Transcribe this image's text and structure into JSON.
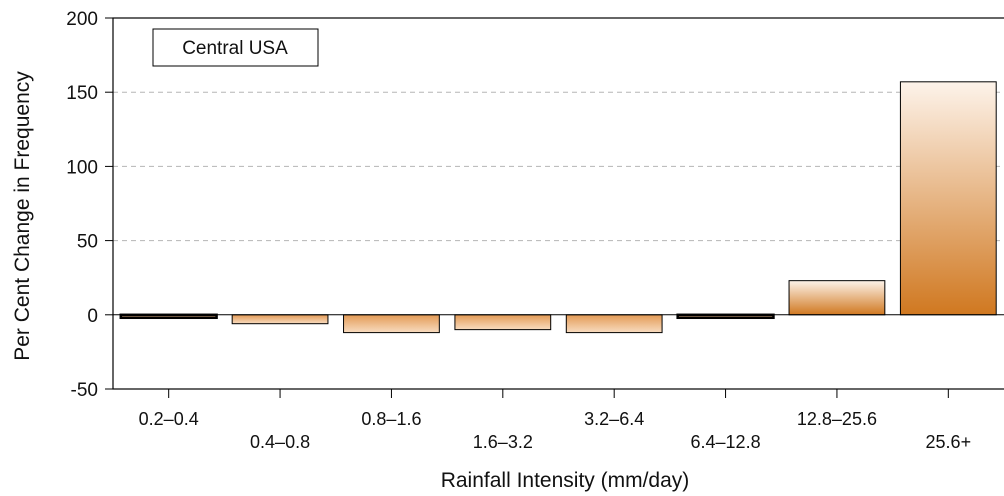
{
  "chart_data": {
    "type": "bar",
    "title": "Central USA",
    "xlabel": "Rainfall Intensity (mm/day)",
    "ylabel": "Per Cent Change in Frequency",
    "ylim": [
      -50,
      200
    ],
    "yticks": [
      -50,
      0,
      50,
      100,
      150,
      200
    ],
    "grid_y_values": [
      50,
      100,
      150
    ],
    "legend": "none",
    "categories": [
      "0.2–0.4",
      "0.4–0.8",
      "0.8–1.6",
      "1.6–3.2",
      "3.2–6.4",
      "6.4–12.8",
      "12.8–25.6",
      "25.6+"
    ],
    "values": [
      -2,
      -6,
      -12,
      -10,
      -12,
      -2,
      23,
      157
    ],
    "colors": {
      "bar_dark": "#d07820",
      "bar_light": "#fdf3ea",
      "grid": "#b5b5b5"
    }
  }
}
